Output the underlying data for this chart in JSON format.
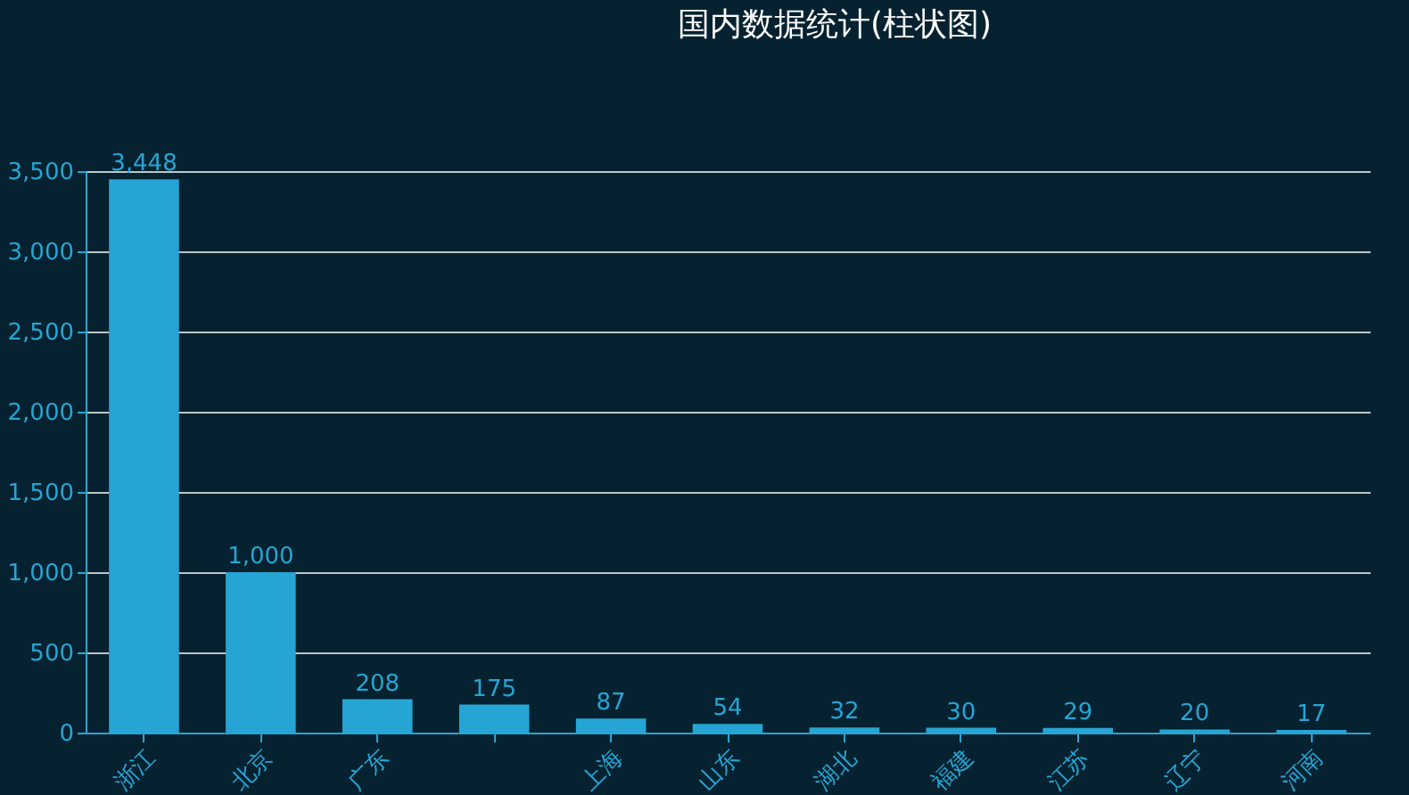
{
  "chart_data": {
    "type": "bar",
    "title": "国内数据统计(柱状图)",
    "categories": [
      "浙江",
      "北京",
      "广东",
      null,
      "上海",
      "山东",
      "湖北",
      "福建",
      "江苏",
      "辽宁",
      "河南"
    ],
    "values": [
      3448,
      1000,
      208,
      175,
      87,
      54,
      32,
      30,
      29,
      20,
      17
    ],
    "value_labels": [
      "3,448",
      "1,000",
      "208",
      "175",
      "87",
      "54",
      "32",
      "30",
      "29",
      "20",
      "17"
    ],
    "color": "#26a5d4",
    "grid": "y",
    "ylim": [
      0,
      3500
    ],
    "yticks": [
      0,
      {
        "value": 500,
        "label": "500"
      },
      {
        "value": 1000,
        "label": "1,000"
      },
      {
        "value": 1500,
        "label": "1,500"
      },
      {
        "value": 2000,
        "label": "2,000"
      },
      {
        "value": 2500,
        "label": "2,500"
      },
      {
        "value": 3000,
        "label": "3,000"
      },
      {
        "value": 3500,
        "label": "3,500"
      }
    ]
  }
}
